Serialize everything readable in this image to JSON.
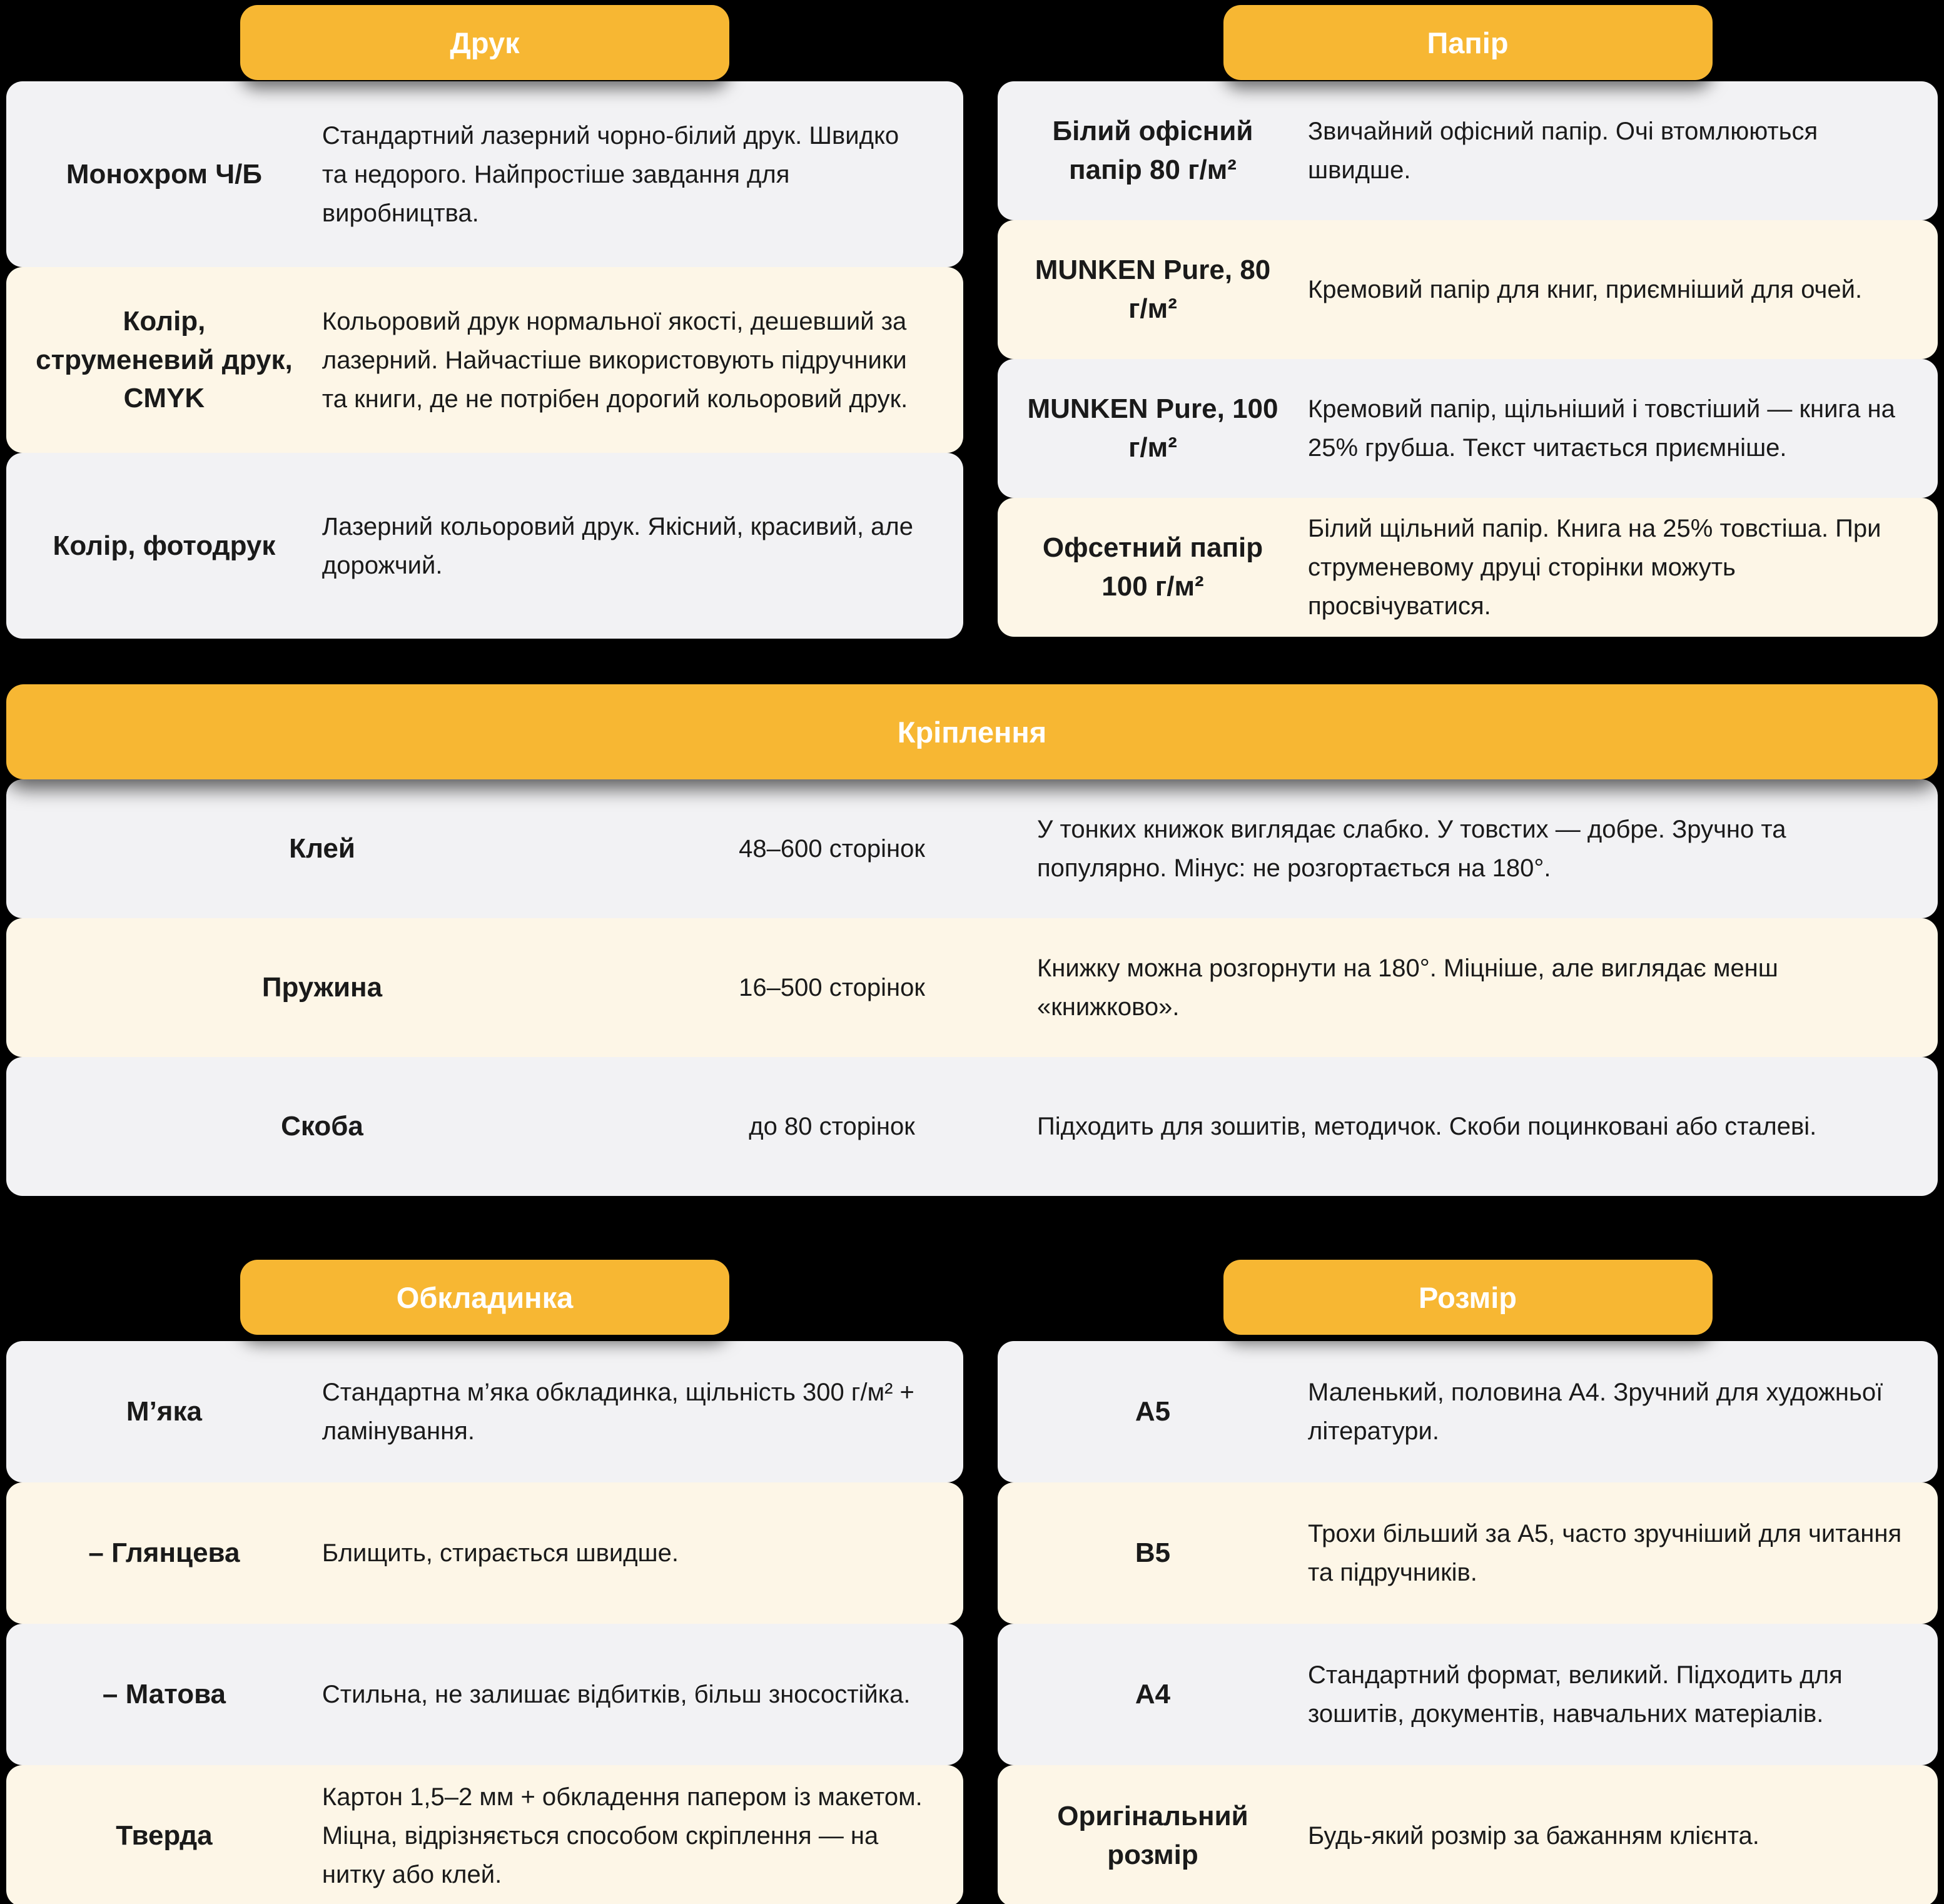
{
  "colors": {
    "accent": "#F7B733",
    "row_gray": "#F2F2F4",
    "row_cream": "#FDF6E7",
    "background": "#000000",
    "text": "#1A1A1A",
    "header_text": "#FFFFFF"
  },
  "sections": {
    "print": {
      "title": "Друк",
      "rows": [
        {
          "label": "Монохром Ч/Б",
          "desc": "Стандартний лазерний чорно-білий друк. Швидко та недорого. Найпростіше завдання для виробництва."
        },
        {
          "label": "Колір, струменевий друк, CMYK",
          "desc": "Кольоровий друк нормальної якості, дешевший за лазерний. Найчастіше використовують підручники та книги, де не потрібен дорогий кольоровий друк."
        },
        {
          "label": "Колір, фотодрук",
          "desc": "Лазерний кольоровий друк. Якісний, красивий, але дорожчий."
        }
      ]
    },
    "paper": {
      "title": "Папір",
      "rows": [
        {
          "label": "Білий офісний папір 80 г/м²",
          "desc": "Звичайний офісний папір. Очі втомлюються швидше."
        },
        {
          "label": "MUNKEN Pure, 80 г/м²",
          "desc": "Кремовий папір для книг, приємніший для очей."
        },
        {
          "label": "MUNKEN Pure, 100 г/м²",
          "desc": "Кремовий папір, щільніший і товстіший — книга на 25% грубша. Текст читається приємніше."
        },
        {
          "label": "Офсетний папір 100 г/м²",
          "desc": "Білий щільний папір. Книга на 25% товстіша. При струменевому друці сторінки можуть просвічуватися."
        }
      ]
    },
    "binding": {
      "title": "Кріплення",
      "rows": [
        {
          "label": "Клей",
          "pages": "48–600 сторінок",
          "desc": "У тонких книжок виглядає слабко. У товстих — добре. Зручно та популярно. Мінус: не розгортається на 180°."
        },
        {
          "label": "Пружина",
          "pages": "16–500 сторінок",
          "desc": "Книжку можна розгорнути на 180°. Міцніше, але виглядає менш «книжково»."
        },
        {
          "label": "Скоба",
          "pages": "до 80 сторінок",
          "desc": "Підходить для зошитів, методичок. Скоби поцинковані або сталеві."
        }
      ]
    },
    "cover": {
      "title": "Обкладинка",
      "rows": [
        {
          "label": "М’яка",
          "desc": "Стандартна м’яка обкладинка, щільність 300 г/м² + ламінування."
        },
        {
          "label": "– Глянцева",
          "desc": "Блищить, стирається швидше."
        },
        {
          "label": "– Матова",
          "desc": "Стильна, не залишає відбитків, більш зносостійка."
        },
        {
          "label": "Тверда",
          "desc": "Картон 1,5–2 мм + обкладення папером із макетом. Міцна, відрізняється способом скріплення — на нитку або клей."
        }
      ]
    },
    "size": {
      "title": "Розмір",
      "rows": [
        {
          "label": "A5",
          "desc": "Маленький, половина A4. Зручний для художньої літератури."
        },
        {
          "label": "B5",
          "desc": "Трохи більший за A5, часто зручніший для читання та підручників."
        },
        {
          "label": "A4",
          "desc": "Стандартний формат, великий. Підходить для зошитів, документів, навчальних матеріалів."
        },
        {
          "label": "Оригінальний розмір",
          "desc": "Будь-який розмір за бажанням клієнта."
        }
      ]
    }
  }
}
